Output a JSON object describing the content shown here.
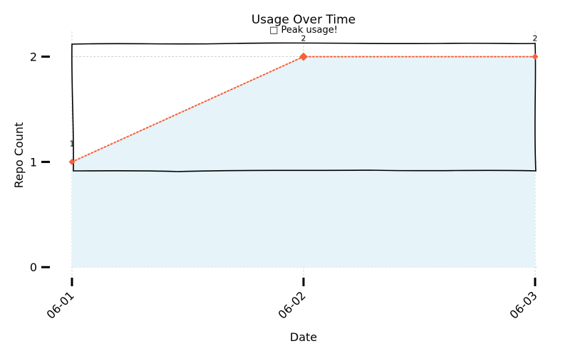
{
  "chart_data": {
    "type": "line",
    "title": "Usage Over Time",
    "xlabel": "Date",
    "ylabel": "Repo Count",
    "categories": [
      "06-01",
      "06-02",
      "06-03"
    ],
    "series": [
      {
        "values": [
          1,
          2,
          2
        ],
        "color": "#f4623a",
        "fill_color": "#e6f3f9"
      }
    ],
    "data_labels": [
      "1",
      "2",
      "2"
    ],
    "yticks": [
      0,
      1,
      2
    ],
    "ylim": [
      -0.1,
      2.2
    ],
    "grid": true,
    "annotation": {
      "text": "□ Peak usage!",
      "category": "06-02",
      "value": 2
    }
  }
}
